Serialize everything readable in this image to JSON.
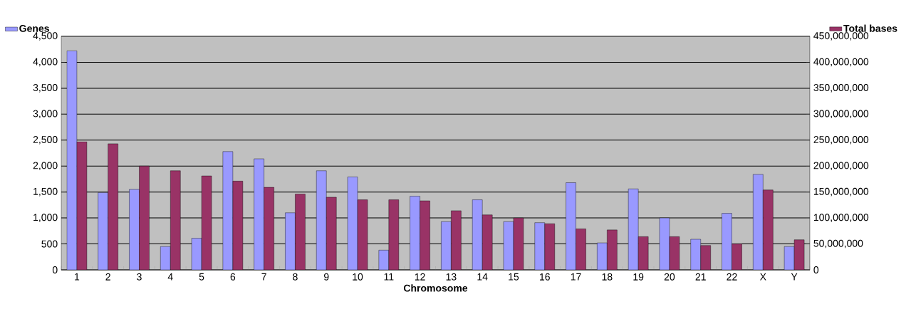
{
  "chart_data": {
    "type": "bar",
    "xlabel": "Chromosome",
    "categories": [
      "1",
      "2",
      "3",
      "4",
      "5",
      "6",
      "7",
      "8",
      "9",
      "10",
      "11",
      "12",
      "13",
      "14",
      "15",
      "16",
      "17",
      "18",
      "19",
      "20",
      "21",
      "22",
      "X",
      "Y"
    ],
    "series": [
      {
        "name": "Genes",
        "color": "#9999ff",
        "values": [
          4220,
          1490,
          1550,
          450,
          610,
          2280,
          2140,
          1100,
          1910,
          1790,
          380,
          1420,
          930,
          1350,
          930,
          910,
          1680,
          520,
          1560,
          1000,
          590,
          1090,
          1840,
          450
        ]
      },
      {
        "name": "Total bases",
        "color": "#993366",
        "axis": "y2",
        "values": [
          247000000,
          243000000,
          200000000,
          191000000,
          181000000,
          171000000,
          159000000,
          146000000,
          140000000,
          135000000,
          135000000,
          133000000,
          114000000,
          106000000,
          100000000,
          89000000,
          79000000,
          77000000,
          64000000,
          64000000,
          47000000,
          50000000,
          154000000,
          58000000
        ]
      }
    ],
    "ylim": [
      0,
      4500
    ],
    "yticks": [
      0,
      500,
      {
        "value": 1000,
        "label": "1,000"
      },
      {
        "value": 1500,
        "label": "1,500"
      },
      {
        "value": 2000,
        "label": "2,000"
      },
      {
        "value": 2500,
        "label": "2,500"
      },
      {
        "value": 3000,
        "label": "3,000"
      },
      {
        "value": 3500,
        "label": "3,500"
      },
      {
        "value": 4000,
        "label": "4,000"
      },
      {
        "value": 4500,
        "label": "4,500"
      }
    ],
    "y2lim": [
      0,
      450000000
    ],
    "y2ticks": [
      0,
      {
        "value": 50000000,
        "label": "50,000,000"
      },
      {
        "value": 100000000,
        "label": "100,000,000"
      },
      {
        "value": 150000000,
        "label": "150,000,000"
      },
      {
        "value": 200000000,
        "label": "200,000,000"
      },
      {
        "value": 250000000,
        "label": "250,000,000"
      },
      {
        "value": 300000000,
        "label": "300,000,000"
      },
      {
        "value": 350000000,
        "label": "350,000,000"
      },
      {
        "value": 400000000,
        "label": "400,000,000"
      },
      {
        "value": 450000000,
        "label": "450,000,000"
      }
    ],
    "grid": "y",
    "legend": "top"
  }
}
